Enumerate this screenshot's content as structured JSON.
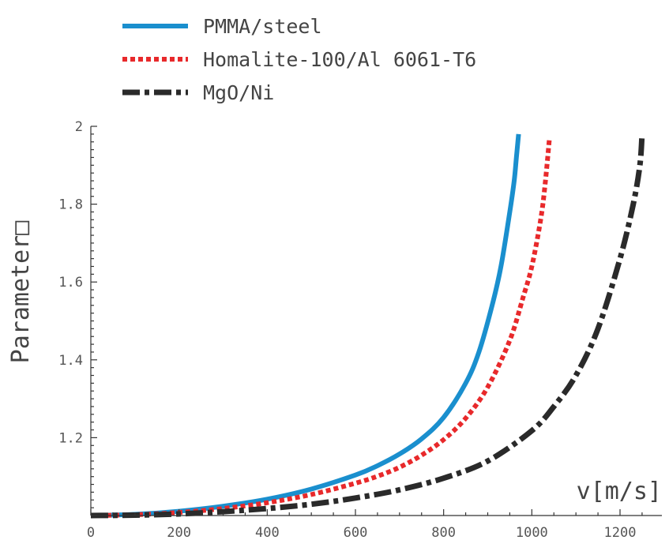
{
  "chart_data": {
    "type": "line",
    "title": "",
    "xlabel": "v[m/s]",
    "ylabel": "Parameter□",
    "xlim": [
      0,
      1250
    ],
    "ylim": [
      1.0,
      2.0
    ],
    "x_ticks": [
      0,
      200,
      400,
      600,
      800,
      1000,
      1200
    ],
    "y_ticks": [
      1.2,
      1.4,
      1.6,
      1.8,
      2
    ],
    "grid": false,
    "legend_position": "top-left",
    "series": [
      {
        "name": "PMMA/steel",
        "color": "#1a8fce",
        "style": "solid",
        "x": [
          0,
          100,
          200,
          300,
          400,
          500,
          600,
          650,
          700,
          750,
          800,
          850,
          880,
          910,
          930,
          950,
          960,
          965,
          970
        ],
        "y": [
          1.0,
          1.003,
          1.011,
          1.024,
          1.042,
          1.068,
          1.104,
          1.128,
          1.158,
          1.197,
          1.252,
          1.34,
          1.42,
          1.54,
          1.64,
          1.78,
          1.86,
          1.92,
          1.98
        ]
      },
      {
        "name": "Homalite-100/Al 6061-T6",
        "color": "#e8292b",
        "style": "dotted",
        "x": [
          0,
          100,
          200,
          300,
          400,
          500,
          600,
          650,
          700,
          750,
          800,
          850,
          900,
          950,
          980,
          1000,
          1020,
          1030,
          1040
        ],
        "y": [
          1.0,
          1.002,
          1.008,
          1.018,
          1.033,
          1.054,
          1.083,
          1.101,
          1.124,
          1.155,
          1.195,
          1.25,
          1.33,
          1.45,
          1.56,
          1.64,
          1.76,
          1.85,
          1.97
        ]
      },
      {
        "name": "MgO/Ni",
        "color": "#2a2a2a",
        "style": "dash-dot",
        "x": [
          0,
          100,
          200,
          300,
          400,
          500,
          600,
          700,
          800,
          900,
          1000,
          1050,
          1100,
          1150,
          1200,
          1230,
          1245,
          1250
        ],
        "y": [
          1.0,
          1.001,
          1.004,
          1.01,
          1.018,
          1.029,
          1.045,
          1.066,
          1.096,
          1.14,
          1.218,
          1.28,
          1.36,
          1.48,
          1.66,
          1.8,
          1.9,
          1.98
        ]
      }
    ]
  }
}
